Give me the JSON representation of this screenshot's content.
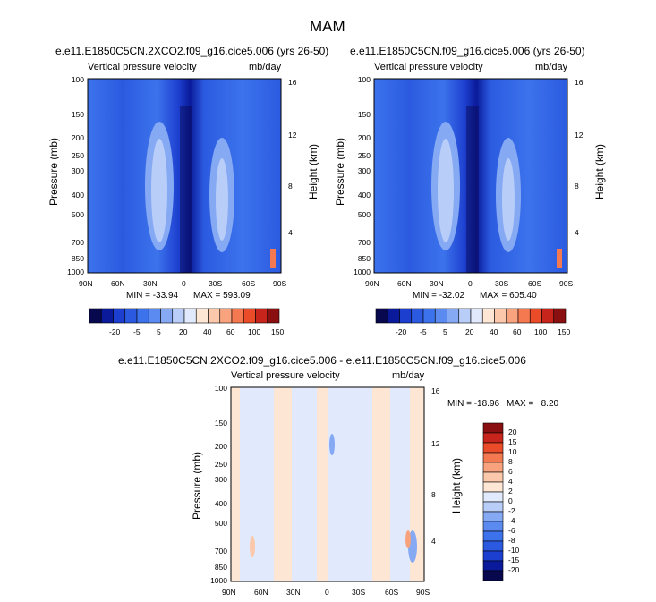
{
  "figure": {
    "title": "MAM"
  },
  "colors": {
    "scale": [
      "#08084f",
      "#0a1a9a",
      "#1d3fcf",
      "#2b5ae0",
      "#3c73ec",
      "#5b8af0",
      "#86a9f4",
      "#b8cdf8",
      "#e0eafc",
      "#fde6d4",
      "#fbc8ab",
      "#f8a37e",
      "#f47950",
      "#ea4b29",
      "#c7241b",
      "#8a0f10"
    ]
  },
  "chart_data": [
    {
      "type": "heatmap",
      "title": "e.e11.E1850C5CN.2XCO2.f09_g16.cice5.006 (yrs 26-50)",
      "left_label": "Vertical pressure velocity",
      "right_label": "mb/day",
      "ylabel": "Pressure (mb)",
      "ylabel_right": "Height (km)",
      "x_ticks": [
        "90N",
        "60N",
        "30N",
        "0",
        "30S",
        "60S",
        "90S"
      ],
      "y_ticks": [
        "100",
        "150",
        "200",
        "250",
        "300",
        "400",
        "500",
        "700",
        "850",
        "1000"
      ],
      "y_right_ticks": [
        "16",
        "12",
        "8",
        "4"
      ],
      "y_log_scale": true,
      "min_label": "MIN = -33.94",
      "max_label": "MAX = 593.09",
      "colorbar": {
        "orientation": "horizontal",
        "labels": [
          "-20",
          "-5",
          "5",
          "20",
          "40",
          "60",
          "100",
          "150"
        ]
      }
    },
    {
      "type": "heatmap",
      "title": "e.e11.E1850C5CN.f09_g16.cice5.006 (yrs 26-50)",
      "left_label": "Vertical pressure velocity",
      "right_label": "mb/day",
      "ylabel": "Pressure (mb)",
      "ylabel_right": "Height (km)",
      "x_ticks": [
        "90N",
        "60N",
        "30N",
        "0",
        "30S",
        "60S",
        "90S"
      ],
      "y_ticks": [
        "100",
        "150",
        "200",
        "250",
        "300",
        "400",
        "500",
        "700",
        "850",
        "1000"
      ],
      "y_right_ticks": [
        "16",
        "12",
        "8",
        "4"
      ],
      "y_log_scale": true,
      "min_label": "MIN = -32.02",
      "max_label": "MAX = 605.40",
      "colorbar": {
        "orientation": "horizontal",
        "labels": [
          "-20",
          "-5",
          "5",
          "20",
          "40",
          "60",
          "100",
          "150"
        ]
      }
    },
    {
      "type": "heatmap",
      "title": "e.e11.E1850C5CN.2XCO2.f09_g16.cice5.006 - e.e11.E1850C5CN.f09_g16.cice5.006",
      "left_label": "Vertical pressure velocity",
      "right_label": "mb/day",
      "ylabel": "Pressure (mb)",
      "ylabel_right": "Height (km)",
      "x_ticks": [
        "90N",
        "60N",
        "30N",
        "0",
        "30S",
        "60S",
        "90S"
      ],
      "y_ticks": [
        "100",
        "150",
        "200",
        "250",
        "300",
        "400",
        "500",
        "700",
        "850",
        "1000"
      ],
      "y_right_ticks": [
        "16",
        "12",
        "8",
        "4"
      ],
      "y_log_scale": true,
      "min_label": "MIN = -18.96",
      "max_label": "MAX =   8.20",
      "colorbar": {
        "orientation": "vertical",
        "labels": [
          "20",
          "15",
          "10",
          "8",
          "6",
          "4",
          "2",
          "0",
          "-2",
          "-4",
          "-6",
          "-8",
          "-10",
          "-15",
          "-20"
        ]
      }
    }
  ]
}
